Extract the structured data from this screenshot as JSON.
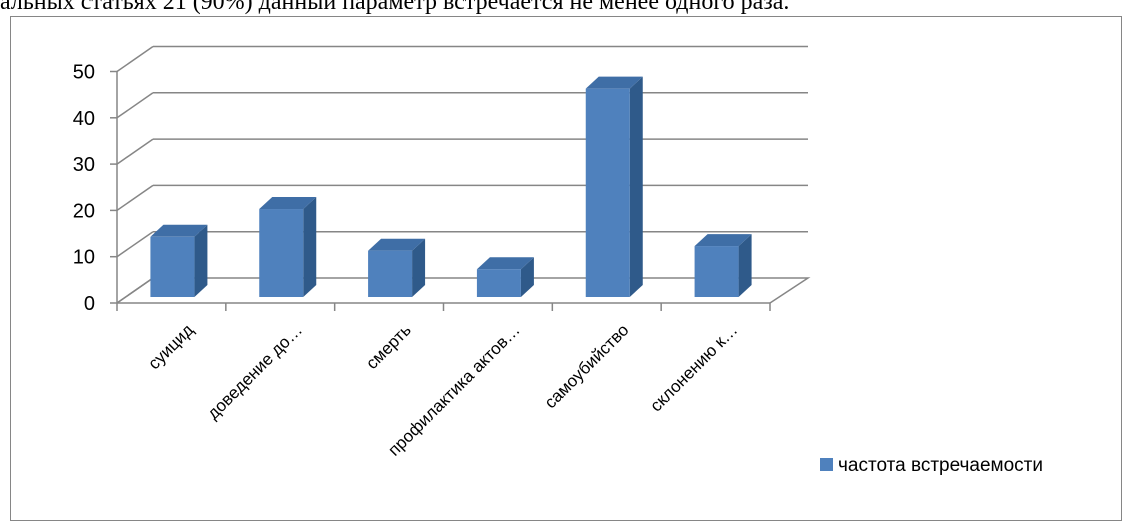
{
  "document": {
    "text_above": "альных статьях 21 (90%) данный параметр встречается не менее одного раза."
  },
  "chart_data": {
    "type": "bar",
    "style": "3d-column",
    "categories": [
      "суицид",
      "доведение до…",
      "смерть",
      "профилактика актов…",
      "самоубийство",
      "склонению к…"
    ],
    "series": [
      {
        "name": "частота встречаемости",
        "values": [
          13,
          19,
          10,
          6,
          45,
          11
        ],
        "color": "#4f81bd"
      }
    ],
    "y_ticks": [
      "0",
      "10",
      "20",
      "30",
      "40",
      "50"
    ],
    "ylim": [
      0,
      50
    ],
    "grid": true,
    "legend_position": "right",
    "colors": {
      "bar_front": "#4f81bd",
      "bar_side": "#2f5a8a",
      "bar_top": "#3f6ea6",
      "grid": "#868686"
    }
  }
}
